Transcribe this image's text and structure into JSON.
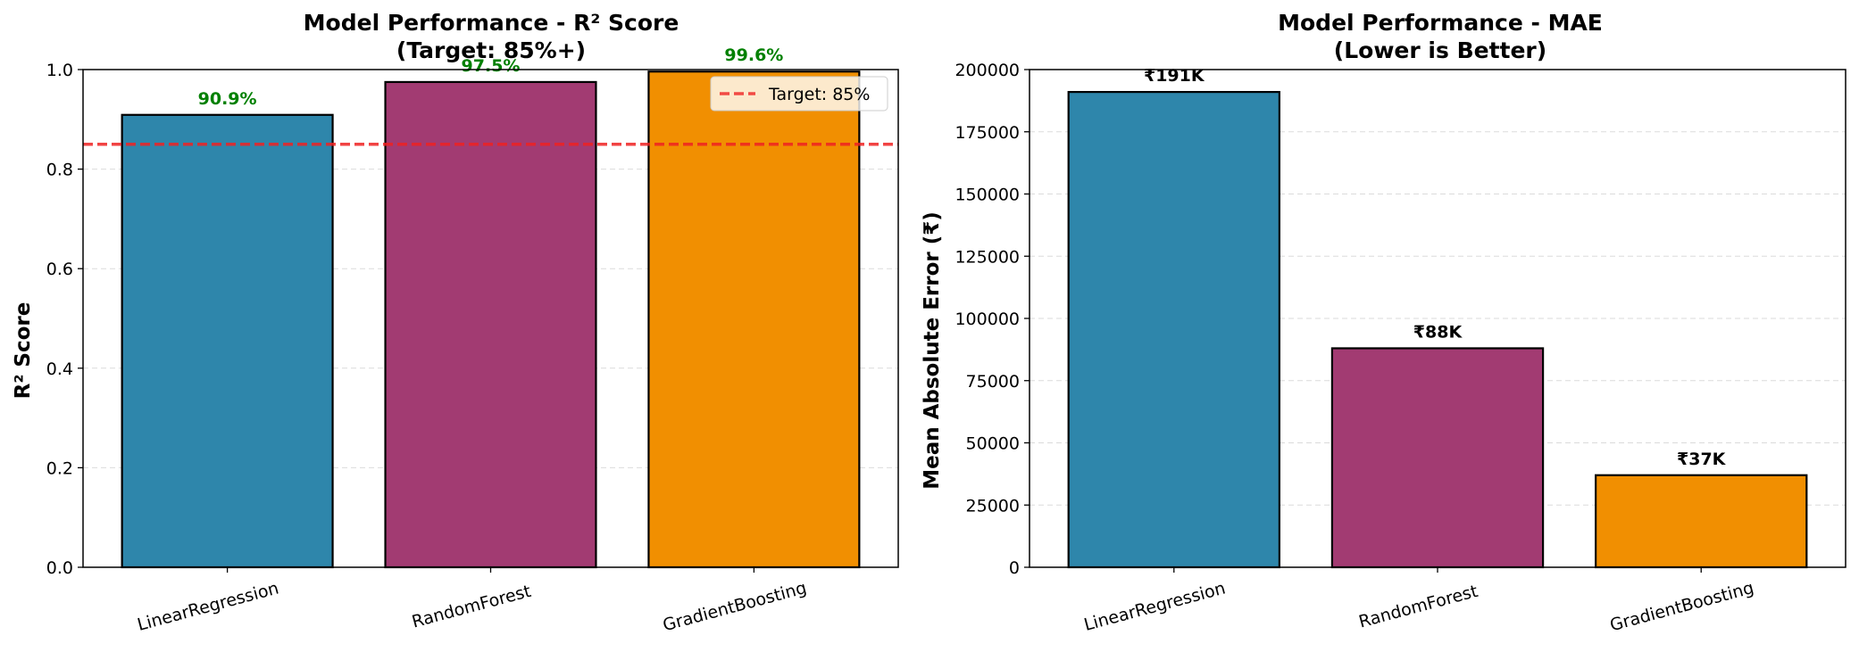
{
  "colors": {
    "bar_colors": [
      "#2e86ab",
      "#a23b72",
      "#f18f01"
    ],
    "bar_edge": "#000000",
    "grid": "#cccccc",
    "r2_label_color": "#008000",
    "mae_label_color": "#000000",
    "target_line": "#ee2222"
  },
  "chart_data": [
    {
      "type": "bar",
      "title": "Model Performance - R² Score",
      "subtitle": "(Target: 85%+)",
      "xlabel": "",
      "ylabel": "R² Score",
      "categories": [
        "LinearRegression",
        "RandomForest",
        "GradientBoosting"
      ],
      "values": [
        0.909,
        0.975,
        0.996
      ],
      "data_labels": [
        "90.9%",
        "97.5%",
        "99.6%"
      ],
      "ylim": [
        0,
        1.0
      ],
      "yticks": [
        "0.0",
        "0.2",
        "0.4",
        "0.6",
        "0.8",
        "1.0"
      ],
      "ytick_values": [
        0,
        0.2,
        0.4,
        0.6,
        0.8,
        1.0
      ],
      "reference_line": {
        "value": 0.85,
        "label": "Target: 85%",
        "style": "dashed"
      },
      "grid": "y-dashed",
      "legend_position": "top-right"
    },
    {
      "type": "bar",
      "title": "Model Performance - MAE",
      "subtitle": "(Lower is Better)",
      "xlabel": "",
      "ylabel": "Mean Absolute Error (₹)",
      "categories": [
        "LinearRegression",
        "RandomForest",
        "GradientBoosting"
      ],
      "values": [
        191000,
        88000,
        37000
      ],
      "data_labels": [
        "₹191K",
        "₹88K",
        "₹37K"
      ],
      "ylim": [
        0,
        200000
      ],
      "yticks": [
        "0",
        "25000",
        "50000",
        "75000",
        "100000",
        "125000",
        "150000",
        "175000",
        "200000"
      ],
      "ytick_values": [
        0,
        25000,
        50000,
        75000,
        100000,
        125000,
        150000,
        175000,
        200000
      ],
      "grid": "y-dashed"
    }
  ]
}
